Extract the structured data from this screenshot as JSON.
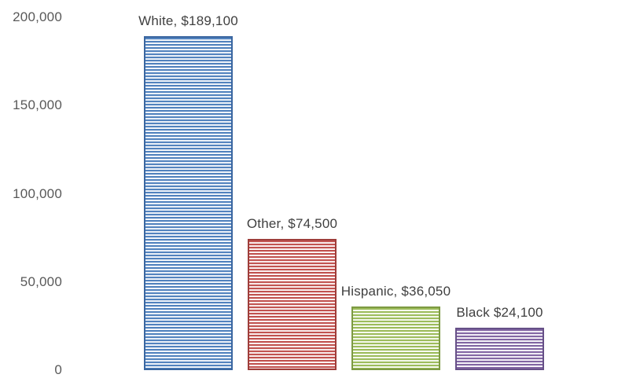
{
  "chart_data": {
    "type": "bar",
    "title": "",
    "xlabel": "",
    "ylabel": "",
    "ylim": [
      0,
      200000
    ],
    "ytick_interval": 50000,
    "grid": false,
    "legend": false,
    "background_color": "#ffffff",
    "pattern_fill": "horizontal-stripes",
    "axis_label_color": "#595959",
    "data_label_color": "#3f3f3f",
    "categories": [
      "White",
      "Other",
      "Hispanic",
      "Black"
    ],
    "values": [
      189100,
      74500,
      36050,
      24100
    ],
    "yticks": [
      {
        "value": 200000,
        "label": "200,000"
      },
      {
        "value": 150000,
        "label": "150,000"
      },
      {
        "value": 100000,
        "label": "100,000"
      },
      {
        "value": 50000,
        "label": "50,000"
      },
      {
        "value": 0,
        "label": "0"
      }
    ],
    "bars": [
      {
        "category": "White",
        "value": 189100,
        "label": "White, $189,100",
        "color": "#4f81bd",
        "light_color": "#c5d5ea",
        "border_color": "#3a66a0"
      },
      {
        "category": "Other",
        "value": 74500,
        "label": "Other, $74,500",
        "color": "#c0504d",
        "light_color": "#ecc5c4",
        "border_color": "#9e3d3a"
      },
      {
        "category": "Hispanic",
        "value": 36050,
        "label": "Hispanic, $36,050",
        "color": "#9bbb59",
        "light_color": "#dce8c2",
        "border_color": "#7d9a43"
      },
      {
        "category": "Black",
        "value": 24100,
        "label": "Black $24,100",
        "color": "#8064a2",
        "light_color": "#d5cbe1",
        "border_color": "#665087"
      }
    ]
  }
}
